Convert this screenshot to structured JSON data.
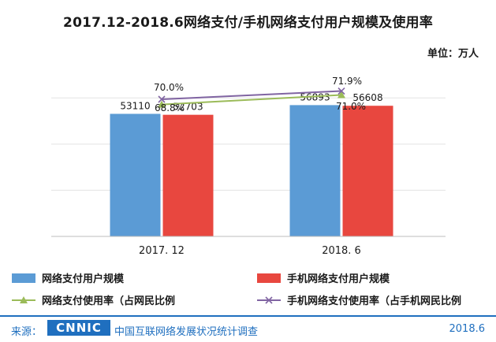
{
  "title": "2017.12-2018.6网络支付/手机网络支付用户规模及使用率",
  "unit_label": "单位：万人",
  "footer": {
    "source_label": "来源：",
    "logo_text": "CNNIC",
    "source_org": "中国互联网络发展状况统计调查",
    "date": "2018.6"
  },
  "watermark_text": "CNNIC",
  "chart_data": {
    "type": "bar",
    "title": "2017.12-2018.6网络支付/手机网络支付用户规模及使用率",
    "categories": [
      "2017. 12",
      "2018. 6"
    ],
    "ylim": [
      0,
      70000
    ],
    "series": [
      {
        "name": "网络支付用户规模",
        "kind": "bar",
        "color": "#5b9bd5",
        "values": [
          53110,
          56893
        ],
        "labels": [
          "53110",
          "56893"
        ]
      },
      {
        "name": "手机网络支付用户规模",
        "kind": "bar",
        "color": "#e8473f",
        "values": [
          52703,
          56608
        ],
        "labels": [
          "52703",
          "56608"
        ]
      },
      {
        "name": "网络支付使用率（占网民比例",
        "kind": "line",
        "color": "#9bbb59",
        "marker": "triangle",
        "values": [
          68.8,
          71.0
        ],
        "labels": [
          "68.8%",
          "71.0%"
        ]
      },
      {
        "name": "手机网络支付使用率（占手机网民比例",
        "kind": "line",
        "color": "#8064a2",
        "marker": "x",
        "values": [
          70.0,
          71.9
        ],
        "labels": [
          "70.0%",
          "71.9%"
        ]
      }
    ]
  }
}
